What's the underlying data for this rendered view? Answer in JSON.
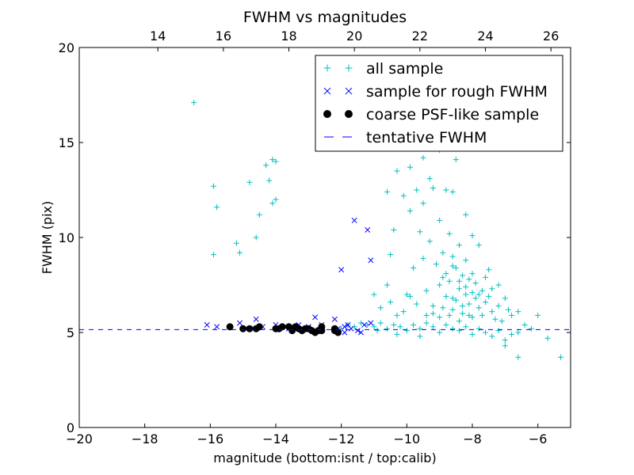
{
  "chart_data": {
    "type": "scatter",
    "title": "FWHM vs magnitudes",
    "xlabel": "magnitude (bottom:isnt / top:calib)",
    "ylabel": "FWHM (pix)",
    "xlim": [
      -20,
      -5
    ],
    "ylim": [
      0,
      20
    ],
    "x_ticks": [
      -20,
      -18,
      -16,
      -14,
      -12,
      -10,
      -8,
      -6
    ],
    "y_ticks": [
      0,
      5,
      10,
      15,
      20
    ],
    "top_axis": {
      "offset": 31.6,
      "ticks": [
        14,
        16,
        18,
        20,
        22,
        24,
        26
      ]
    },
    "grid": false,
    "legend_position": "top-right",
    "series": [
      {
        "name": "all sample",
        "marker": "plus",
        "color": "#00bfbf",
        "points": [
          [
            -16.5,
            17.1
          ],
          [
            -15.9,
            12.7
          ],
          [
            -15.8,
            11.6
          ],
          [
            -15.9,
            9.1
          ],
          [
            -15.2,
            9.7
          ],
          [
            -15.1,
            9.2
          ],
          [
            -14.8,
            12.9
          ],
          [
            -14.6,
            10.0
          ],
          [
            -14.5,
            11.2
          ],
          [
            -14.3,
            13.8
          ],
          [
            -14.1,
            14.1
          ],
          [
            -14.0,
            14.0
          ],
          [
            -14.0,
            12.0
          ],
          [
            -14.1,
            11.8
          ],
          [
            -14.2,
            13.0
          ],
          [
            -12.0,
            5.2
          ],
          [
            -11.8,
            5.4
          ],
          [
            -11.6,
            5.3
          ],
          [
            -11.4,
            5.5
          ],
          [
            -11.2,
            5.4
          ],
          [
            -11.0,
            5.3
          ],
          [
            -10.8,
            5.5
          ],
          [
            -10.6,
            5.2
          ],
          [
            -10.4,
            5.4
          ],
          [
            -10.2,
            5.3
          ],
          [
            -10.0,
            5.1
          ],
          [
            -9.8,
            5.4
          ],
          [
            -9.6,
            5.2
          ],
          [
            -9.4,
            5.5
          ],
          [
            -9.2,
            5.3
          ],
          [
            -9.0,
            5.0
          ],
          [
            -8.8,
            5.4
          ],
          [
            -8.6,
            5.2
          ],
          [
            -8.4,
            5.1
          ],
          [
            -8.2,
            5.3
          ],
          [
            -8.0,
            4.9
          ],
          [
            -7.8,
            5.2
          ],
          [
            -7.6,
            5.0
          ],
          [
            -7.4,
            4.8
          ],
          [
            -7.2,
            5.1
          ],
          [
            -7.0,
            4.6
          ],
          [
            -6.8,
            4.9
          ],
          [
            -6.6,
            5.0
          ],
          [
            -6.4,
            5.4
          ],
          [
            -6.2,
            5.2
          ],
          [
            -6.0,
            5.9
          ],
          [
            -5.7,
            4.7
          ],
          [
            -5.3,
            3.7
          ],
          [
            -6.6,
            3.7
          ],
          [
            -7.0,
            4.3
          ],
          [
            -9.6,
            4.8
          ],
          [
            -10.3,
            4.9
          ],
          [
            -10.9,
            5.1
          ],
          [
            -11.0,
            7.0
          ],
          [
            -10.6,
            7.5
          ],
          [
            -10.5,
            9.1
          ],
          [
            -10.4,
            10.4
          ],
          [
            -10.6,
            12.4
          ],
          [
            -10.3,
            13.5
          ],
          [
            -10.1,
            12.2
          ],
          [
            -9.9,
            11.4
          ],
          [
            -9.9,
            13.7
          ],
          [
            -9.7,
            12.5
          ],
          [
            -9.5,
            11.8
          ],
          [
            -9.5,
            14.2
          ],
          [
            -9.3,
            13.1
          ],
          [
            -9.2,
            12.6
          ],
          [
            -9.0,
            14.6
          ],
          [
            -8.8,
            12.5
          ],
          [
            -8.6,
            12.4
          ],
          [
            -8.5,
            14.1
          ],
          [
            -8.2,
            11.2
          ],
          [
            -8.0,
            10.1
          ],
          [
            -7.8,
            9.6
          ],
          [
            -7.5,
            8.3
          ],
          [
            -7.2,
            7.5
          ],
          [
            -6.9,
            6.2
          ],
          [
            -10.8,
            6.3
          ],
          [
            -10.5,
            6.6
          ],
          [
            -10.3,
            5.9
          ],
          [
            -10.0,
            7.0
          ],
          [
            -9.8,
            8.4
          ],
          [
            -9.6,
            10.3
          ],
          [
            -9.5,
            8.9
          ],
          [
            -9.4,
            7.2
          ],
          [
            -9.3,
            9.8
          ],
          [
            -9.2,
            6.4
          ],
          [
            -9.1,
            8.6
          ],
          [
            -9.0,
            10.9
          ],
          [
            -9.0,
            7.5
          ],
          [
            -8.9,
            9.2
          ],
          [
            -8.8,
            6.9
          ],
          [
            -8.8,
            8.1
          ],
          [
            -8.7,
            10.2
          ],
          [
            -8.7,
            7.7
          ],
          [
            -8.6,
            6.2
          ],
          [
            -8.6,
            9.0
          ],
          [
            -8.5,
            8.4
          ],
          [
            -8.5,
            6.7
          ],
          [
            -8.4,
            7.3
          ],
          [
            -8.4,
            9.6
          ],
          [
            -8.3,
            8.0
          ],
          [
            -8.3,
            6.0
          ],
          [
            -8.2,
            7.0
          ],
          [
            -8.2,
            8.8
          ],
          [
            -8.1,
            6.5
          ],
          [
            -8.1,
            7.8
          ],
          [
            -8.0,
            7.1
          ],
          [
            -8.0,
            5.8
          ],
          [
            -7.9,
            6.8
          ],
          [
            -7.9,
            7.6
          ],
          [
            -7.8,
            6.3
          ],
          [
            -7.7,
            7.2
          ],
          [
            -7.7,
            5.9
          ],
          [
            -7.6,
            6.6
          ],
          [
            -7.5,
            6.9
          ],
          [
            -7.4,
            6.1
          ],
          [
            -7.3,
            5.7
          ],
          [
            -7.2,
            6.4
          ],
          [
            -7.1,
            5.6
          ],
          [
            -9.2,
            6.0
          ],
          [
            -9.0,
            5.8
          ],
          [
            -8.9,
            6.3
          ],
          [
            -8.7,
            5.9
          ],
          [
            -8.6,
            6.8
          ],
          [
            -8.4,
            5.6
          ],
          [
            -8.3,
            6.4
          ],
          [
            -8.1,
            5.9
          ],
          [
            -9.4,
            5.9
          ],
          [
            -9.7,
            6.5
          ],
          [
            -9.9,
            6.9
          ],
          [
            -10.1,
            6.1
          ],
          [
            -8.9,
            7.9
          ],
          [
            -8.6,
            8.5
          ],
          [
            -8.4,
            7.7
          ],
          [
            -8.2,
            7.4
          ],
          [
            -8.0,
            8.1
          ],
          [
            -7.8,
            7.0
          ],
          [
            -7.6,
            7.9
          ],
          [
            -7.4,
            7.3
          ],
          [
            -7.0,
            6.8
          ],
          [
            -6.8,
            5.9
          ],
          [
            -6.6,
            6.1
          ]
        ]
      },
      {
        "name": "sample for rough FWHM",
        "marker": "cross",
        "color": "#0000ff",
        "points": [
          [
            -16.1,
            5.4
          ],
          [
            -15.8,
            5.3
          ],
          [
            -15.1,
            5.5
          ],
          [
            -14.8,
            5.2
          ],
          [
            -14.6,
            5.7
          ],
          [
            -14.4,
            5.3
          ],
          [
            -14.0,
            5.4
          ],
          [
            -13.6,
            5.2
          ],
          [
            -13.3,
            5.4
          ],
          [
            -13.0,
            5.3
          ],
          [
            -12.8,
            5.8
          ],
          [
            -12.6,
            5.4
          ],
          [
            -12.2,
            5.7
          ],
          [
            -12.0,
            8.3
          ],
          [
            -11.9,
            5.3
          ],
          [
            -11.7,
            5.2
          ],
          [
            -11.5,
            5.1
          ],
          [
            -11.4,
            5.0
          ],
          [
            -11.3,
            5.4
          ],
          [
            -11.2,
            10.4
          ],
          [
            -11.1,
            8.8
          ],
          [
            -11.6,
            10.9
          ],
          [
            -11.8,
            5.4
          ],
          [
            -12.1,
            5.2
          ],
          [
            -11.1,
            5.5
          ],
          [
            -11.9,
            5.0
          ]
        ]
      },
      {
        "name": "coarse PSF-like sample",
        "marker": "circle",
        "color": "#000000",
        "points": [
          [
            -15.4,
            5.3
          ],
          [
            -15.0,
            5.2
          ],
          [
            -14.6,
            5.2
          ],
          [
            -14.5,
            5.3
          ],
          [
            -14.0,
            5.2
          ],
          [
            -13.9,
            5.2
          ],
          [
            -13.8,
            5.3
          ],
          [
            -13.6,
            5.3
          ],
          [
            -13.4,
            5.3
          ],
          [
            -13.3,
            5.2
          ],
          [
            -13.2,
            5.1
          ],
          [
            -13.0,
            5.2
          ],
          [
            -12.9,
            5.1
          ],
          [
            -12.8,
            5.0
          ],
          [
            -12.7,
            5.1
          ],
          [
            -12.6,
            5.3
          ],
          [
            -12.6,
            5.1
          ],
          [
            -12.2,
            5.2
          ],
          [
            -12.1,
            5.0
          ],
          [
            -14.8,
            5.2
          ],
          [
            -13.5,
            5.1
          ],
          [
            -13.1,
            5.2
          ],
          [
            -12.2,
            5.1
          ]
        ]
      },
      {
        "name": "tentative FWHM",
        "marker": "dashed-line",
        "color": "#0000ff",
        "y_value": 5.15
      }
    ]
  }
}
